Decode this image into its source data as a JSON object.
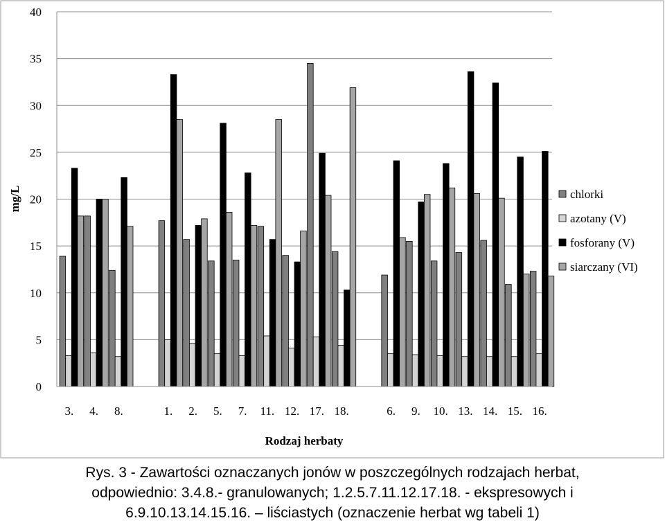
{
  "chart_data": {
    "type": "bar",
    "ylabel": "mg/L",
    "xlabel": "Rodzaj herbaty",
    "ylim": [
      0,
      40
    ],
    "yticks": [
      0,
      5,
      10,
      15,
      20,
      25,
      30,
      35,
      40
    ],
    "grid": "horizontal",
    "legend_position": "right",
    "groups": [
      {
        "categories": [
          "3.",
          "4.",
          "8."
        ]
      },
      {
        "categories": [
          "1.",
          "2.",
          "5.",
          "7.",
          "11.",
          "12.",
          "17.",
          "18."
        ]
      },
      {
        "categories": [
          "6.",
          "9.",
          "10.",
          "13.",
          "14.",
          "15.",
          "16."
        ]
      }
    ],
    "categories": [
      "3.",
      "4.",
      "8.",
      "1.",
      "2.",
      "5.",
      "7.",
      "11.",
      "12.",
      "17.",
      "18.",
      "6.",
      "9.",
      "10.",
      "13.",
      "14.",
      "15.",
      "16."
    ],
    "series": [
      {
        "name": "chlorki",
        "color": "#808080",
        "values": [
          13.9,
          18.2,
          12.4,
          17.7,
          15.7,
          13.4,
          13.5,
          17.1,
          14.0,
          34.5,
          14.4,
          11.9,
          15.5,
          13.4,
          14.3,
          15.6,
          10.9,
          12.3
        ]
      },
      {
        "name": "azotany (V)",
        "color": "#d4d4d4",
        "values": [
          3.3,
          3.6,
          3.2,
          5.0,
          4.6,
          3.5,
          3.3,
          5.4,
          4.1,
          5.3,
          4.4,
          3.5,
          3.4,
          3.3,
          3.2,
          3.2,
          3.2,
          3.5
        ]
      },
      {
        "name": "fosforany (V)",
        "color": "#000000",
        "values": [
          23.3,
          20.0,
          22.3,
          33.3,
          17.2,
          28.1,
          22.8,
          15.7,
          13.3,
          24.9,
          10.3,
          24.1,
          19.7,
          23.8,
          33.6,
          32.4,
          24.5,
          25.1
        ]
      },
      {
        "name": "siarczany (VI)",
        "color": "#a6a6a6",
        "values": [
          18.2,
          20.0,
          17.1,
          28.5,
          17.9,
          18.6,
          17.2,
          28.5,
          16.6,
          20.4,
          31.9,
          15.9,
          20.5,
          21.2,
          20.6,
          20.1,
          12.0,
          11.8
        ]
      }
    ]
  },
  "caption": {
    "line1": "Rys. 3 - Zawartości oznaczanych jonów w poszczególnych rodzajach herbat,",
    "line2": "odpowiednio: 3.4.8.- granulowanych; 1.2.5.7.11.12.17.18. - ekspresowych i",
    "line3": "6.9.10.13.14.15.16. – liściastych (oznaczenie herbat wg tabeli 1)"
  }
}
